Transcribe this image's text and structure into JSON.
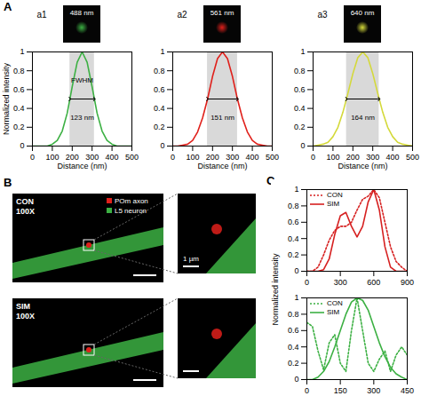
{
  "panel_labels": [
    "A",
    "B",
    "C"
  ],
  "panel_a_images": [
    {
      "label": "a1",
      "title": "488 nm",
      "color": "#3cb043"
    },
    {
      "label": "a2",
      "title": "561 nm",
      "color": "#e0201b"
    },
    {
      "label": "a3",
      "title": "640 nm",
      "color": "#d4d93a"
    }
  ],
  "panel_b": {
    "rows": [
      {
        "title": "CON 100X",
        "scale_label": "1 µm"
      },
      {
        "title": "SIM 100X"
      }
    ],
    "legend": [
      {
        "name": "POm axon",
        "color": "#e0201b"
      },
      {
        "name": "L5 neuron",
        "color": "#3cb043"
      }
    ]
  },
  "chart_data": [
    {
      "type": "line",
      "x_label": "Distance (nm)",
      "y_label": "Normalized intensity",
      "xlim": [
        0,
        500
      ],
      "ylim": [
        0,
        1
      ],
      "xticks": [
        0,
        100,
        200,
        300,
        400,
        500
      ],
      "yticks": [
        0,
        0.2,
        0.4,
        0.6,
        0.8,
        1
      ],
      "x": [
        0,
        25,
        50,
        75,
        100,
        125,
        150,
        175,
        200,
        225,
        250,
        275,
        300,
        325,
        350,
        375,
        400,
        425,
        450,
        475,
        500
      ],
      "series": [
        {
          "color": "#3cb043",
          "line_style": "solid",
          "values": [
            0,
            0,
            0,
            0,
            0.02,
            0.06,
            0.16,
            0.35,
            0.63,
            0.89,
            1,
            0.89,
            0.63,
            0.35,
            0.16,
            0.06,
            0.02,
            0,
            0,
            0,
            0
          ]
        }
      ],
      "fwhm": [
        188.5,
        311.5
      ],
      "annotations": [
        "FWHM",
        "123 nm"
      ]
    },
    {
      "type": "line",
      "x_label": "Distance (nm)",
      "xlim": [
        0,
        500
      ],
      "ylim": [
        0,
        1
      ],
      "xticks": [
        0,
        100,
        200,
        300,
        400,
        500
      ],
      "yticks": [
        0,
        0.2,
        0.4,
        0.6,
        0.8,
        1
      ],
      "x": [
        0,
        25,
        50,
        75,
        100,
        125,
        150,
        175,
        200,
        225,
        250,
        275,
        300,
        325,
        350,
        375,
        400,
        425,
        450,
        475,
        500
      ],
      "series": [
        {
          "color": "#e0201b",
          "line_style": "solid",
          "values": [
            0,
            0,
            0.01,
            0.02,
            0.06,
            0.15,
            0.3,
            0.5,
            0.74,
            0.93,
            1,
            0.93,
            0.74,
            0.5,
            0.3,
            0.15,
            0.06,
            0.02,
            0.01,
            0,
            0
          ]
        }
      ],
      "fwhm": [
        174.5,
        325.5
      ],
      "annotations": [
        "151 nm"
      ]
    },
    {
      "type": "line",
      "x_label": "Distance (nm)",
      "xlim": [
        0,
        500
      ],
      "ylim": [
        0,
        1
      ],
      "xticks": [
        0,
        100,
        200,
        300,
        400,
        500
      ],
      "yticks": [
        0,
        0.2,
        0.4,
        0.6,
        0.8,
        1
      ],
      "x": [
        0,
        25,
        50,
        75,
        100,
        125,
        150,
        175,
        200,
        225,
        250,
        275,
        300,
        325,
        350,
        375,
        400,
        425,
        450,
        475,
        500
      ],
      "series": [
        {
          "color": "#d4d93a",
          "line_style": "solid",
          "values": [
            0,
            0.01,
            0.02,
            0.04,
            0.1,
            0.2,
            0.36,
            0.56,
            0.77,
            0.94,
            1,
            0.94,
            0.77,
            0.56,
            0.36,
            0.2,
            0.1,
            0.04,
            0.02,
            0.01,
            0
          ]
        }
      ],
      "fwhm": [
        168,
        332
      ],
      "annotations": [
        "164 nm"
      ]
    },
    {
      "type": "line",
      "y_label": "Normalized intensity",
      "legend": "top-left",
      "xlim": [
        0,
        900
      ],
      "ylim": [
        0,
        1
      ],
      "xticks": [
        0,
        300,
        600,
        900
      ],
      "yticks": [
        0,
        0.2,
        0.4,
        0.6,
        0.8,
        1
      ],
      "x": [
        0,
        50,
        100,
        150,
        200,
        250,
        300,
        350,
        400,
        450,
        500,
        550,
        600,
        650,
        700,
        750,
        800,
        850,
        900
      ],
      "series": [
        {
          "name": "CON",
          "color": "#d62020",
          "line_style": "dotted",
          "values": [
            0,
            0,
            0.05,
            0.2,
            0.38,
            0.5,
            0.55,
            0.55,
            0.6,
            0.75,
            0.88,
            0.92,
            1,
            0.9,
            0.6,
            0.3,
            0.12,
            0.05,
            0
          ]
        },
        {
          "name": "SIM",
          "color": "#d62020",
          "line_style": "solid",
          "values": [
            0,
            0,
            0,
            0.02,
            0.15,
            0.45,
            0.68,
            0.72,
            0.55,
            0.42,
            0.55,
            0.85,
            1,
            0.75,
            0.3,
            0.05,
            0,
            0,
            0
          ]
        }
      ]
    },
    {
      "type": "line",
      "legend": "top-left",
      "xlim": [
        0,
        450
      ],
      "ylim": [
        0,
        1
      ],
      "xticks": [
        0,
        150,
        300,
        450
      ],
      "yticks": [
        0,
        0.2,
        0.4,
        0.6,
        0.8,
        1
      ],
      "x": [
        0,
        25,
        50,
        75,
        100,
        125,
        150,
        175,
        200,
        225,
        250,
        275,
        300,
        325,
        350,
        375,
        400,
        425,
        450
      ],
      "series": [
        {
          "name": "CON",
          "color": "#3cb043",
          "line_style": "dotted",
          "values": [
            0.7,
            0.65,
            0.35,
            0.12,
            0.45,
            0.55,
            0.2,
            0.1,
            0.6,
            1,
            0.6,
            0.2,
            0.1,
            0.25,
            0.35,
            0.1,
            0.3,
            0.4,
            0.3
          ]
        },
        {
          "name": "SIM",
          "color": "#3cb043",
          "line_style": "solid",
          "values": [
            0,
            0,
            0.03,
            0.1,
            0.22,
            0.4,
            0.6,
            0.8,
            0.95,
            1,
            0.97,
            0.85,
            0.65,
            0.45,
            0.28,
            0.15,
            0.07,
            0.03,
            0
          ]
        }
      ]
    }
  ]
}
